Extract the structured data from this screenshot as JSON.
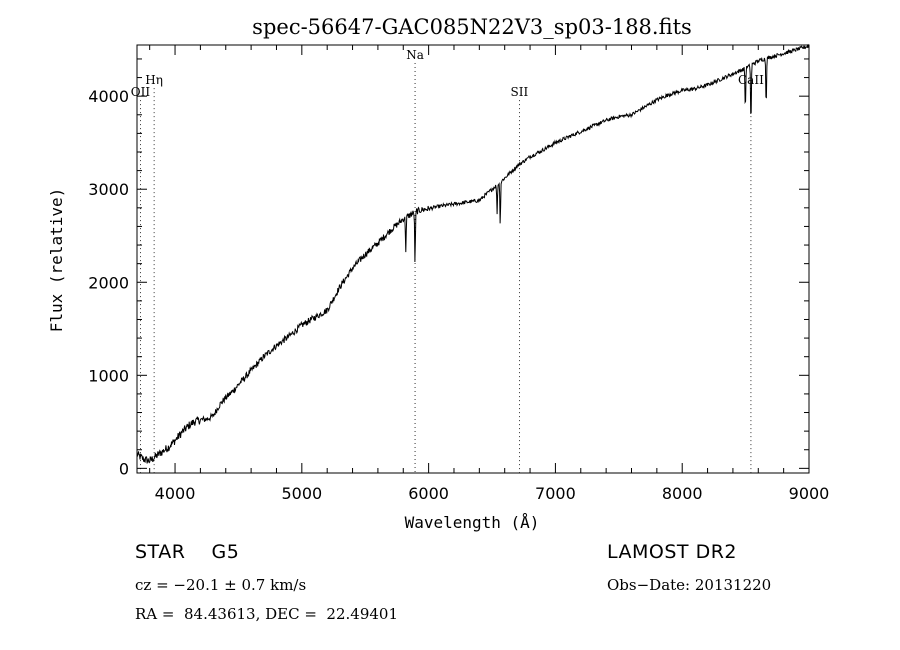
{
  "chart_data": {
    "type": "line",
    "title": "spec-56647-GAC085N22V3_sp03-188.fits",
    "xlabel": "Wavelength (Å)",
    "ylabel": "Flux (relative)",
    "xlim": [
      3700,
      9000
    ],
    "ylim": [
      -50,
      4550
    ],
    "x_ticks": [
      4000,
      5000,
      6000,
      7000,
      8000,
      9000
    ],
    "y_ticks": [
      0,
      1000,
      2000,
      3000,
      4000
    ],
    "x_tick_labels": [
      "4000",
      "5000",
      "6000",
      "7000",
      "8000",
      "9000"
    ],
    "y_tick_labels": [
      "0",
      "1000",
      "2000",
      "3000",
      "4000"
    ],
    "lines": [
      {
        "name": "OII",
        "wavelength": 3727,
        "label_level": 4000
      },
      {
        "name": "Hη",
        "wavelength": 3835,
        "label_level": 4130
      },
      {
        "name": "Na",
        "wavelength": 5893,
        "label_level": 4400
      },
      {
        "name": "SII",
        "wavelength": 6716,
        "label_level": 4000
      },
      {
        "name": "CaII",
        "wavelength": 8542,
        "label_level": 4130
      }
    ],
    "series": [
      {
        "name": "flux",
        "x": [
          3700,
          3750,
          3800,
          3850,
          3900,
          3950,
          4000,
          4050,
          4100,
          4150,
          4200,
          4250,
          4300,
          4350,
          4400,
          4450,
          4500,
          4600,
          4700,
          4800,
          4900,
          5000,
          5100,
          5200,
          5300,
          5400,
          5500,
          5600,
          5700,
          5800,
          5850,
          5900,
          5950,
          6000,
          6100,
          6200,
          6300,
          6400,
          6500,
          6600,
          6700,
          6800,
          6900,
          7000,
          7100,
          7200,
          7300,
          7400,
          7500,
          7600,
          7700,
          7800,
          7900,
          8000,
          8100,
          8200,
          8300,
          8400,
          8500,
          8600,
          8700,
          8800,
          8900,
          9000
        ],
        "values": [
          150,
          100,
          80,
          130,
          180,
          230,
          300,
          380,
          450,
          500,
          520,
          530,
          560,
          680,
          760,
          820,
          900,
          1050,
          1200,
          1320,
          1420,
          1540,
          1620,
          1700,
          1950,
          2150,
          2300,
          2420,
          2560,
          2680,
          2720,
          2760,
          2780,
          2790,
          2820,
          2840,
          2860,
          2880,
          3000,
          3120,
          3250,
          3350,
          3420,
          3500,
          3560,
          3620,
          3680,
          3740,
          3780,
          3800,
          3880,
          3960,
          4020,
          4060,
          4080,
          4120,
          4180,
          4240,
          4300,
          4380,
          4420,
          4460,
          4500,
          4540
        ]
      }
    ],
    "absorption_dips": [
      {
        "x": 5820,
        "depth": 350
      },
      {
        "x": 5893,
        "depth": 550
      },
      {
        "x": 6540,
        "depth": 300
      },
      {
        "x": 6565,
        "depth": 450
      },
      {
        "x": 8498,
        "depth": 450
      },
      {
        "x": 8542,
        "depth": 650
      },
      {
        "x": 8662,
        "depth": 500
      }
    ],
    "grid": false
  },
  "info": {
    "class_line": "STAR    G5",
    "survey": "LAMOST DR2",
    "cz": "cz = −20.1 ± 0.7 km/s",
    "obs_date": "Obs−Date: 20131220",
    "coords": "RA =  84.43613, DEC =  22.49401"
  }
}
